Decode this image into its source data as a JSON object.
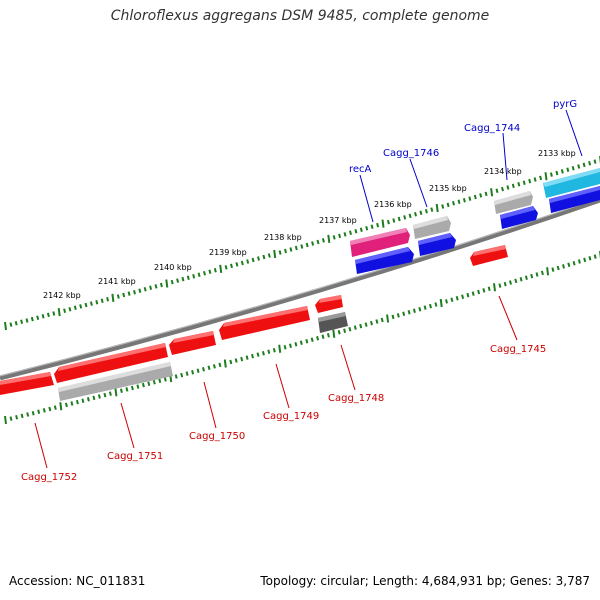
{
  "title": "Chloroflexus aggregans DSM 9485, complete genome",
  "footer": {
    "accession": "Accession: NC_011831",
    "stats": "Topology: circular; Length: 4,684,931 bp; Genes: 3,787"
  },
  "colors": {
    "backbone": "#777777",
    "ticks": "#1e7d1e",
    "forward_label": "#0000cc",
    "reverse_label": "#cc0000",
    "forward_cds": "#1010e0",
    "reverse_cds": "#ee1010",
    "gray_cds": "#aaaaaa",
    "dark_gray_cds": "#555555",
    "pink_cds": "#e0207a",
    "cyan_cds": "#20b8e0"
  },
  "scale_labels": [
    "2133 kbp",
    "2134 kbp",
    "2135 kbp",
    "2136 kbp",
    "2137 kbp",
    "2138 kbp",
    "2139 kbp",
    "2140 kbp",
    "2141 kbp",
    "2142 kbp"
  ],
  "gene_labels": {
    "forward": [
      "pyrG",
      "Cagg_1744",
      "Cagg_1746",
      "recA"
    ],
    "reverse": [
      "Cagg_1745",
      "Cagg_1748",
      "Cagg_1749",
      "Cagg_1750",
      "Cagg_1751",
      "Cagg_1752"
    ]
  }
}
